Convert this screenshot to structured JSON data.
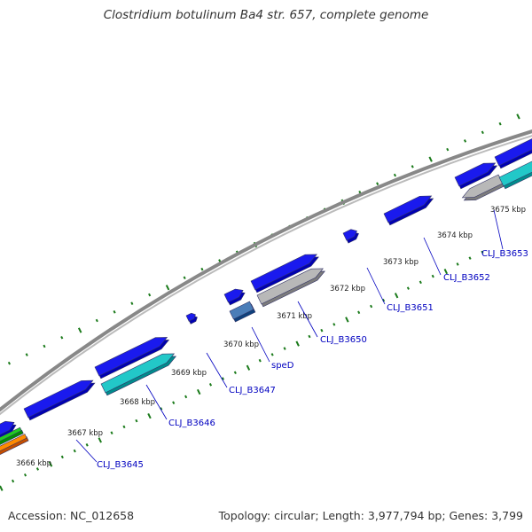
{
  "title": "Clostridium botulinum Ba4 str. 657, complete genome",
  "footer": {
    "accession": "Accession: NC_012658",
    "summary": "Topology: circular; Length: 3,977,794 bp; Genes: 3,799"
  },
  "ticks": [
    "3666 kbp",
    "3667 kbp",
    "3668 kbp",
    "3669 kbp",
    "3670 kbp",
    "3671 kbp",
    "3672 kbp",
    "3673 kbp",
    "3674 kbp",
    "3675 kbp"
  ],
  "gene_labels": [
    "CLJ_B3645",
    "CLJ_B3646",
    "CLJ_B3647",
    "speD",
    "CLJ_B3650",
    "CLJ_B3651",
    "CLJ_B3652",
    "CLJ_B3653"
  ],
  "colors": {
    "cds": "#1a1aee",
    "gray_feature": "#b8b8b8",
    "cyan_feature": "#22c8c8",
    "steelblue_feature": "#4a7db8",
    "backbone": "#888888",
    "tick": "#1a7a1a",
    "label_text": "#0000c0"
  }
}
